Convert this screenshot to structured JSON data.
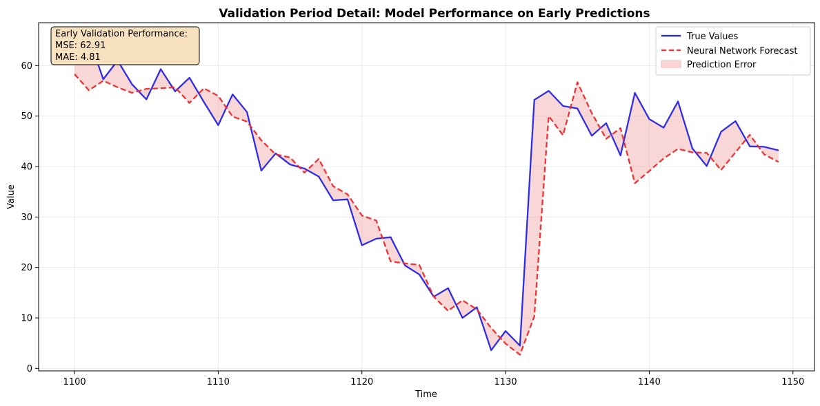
{
  "chart_data": {
    "type": "line",
    "title": "Validation Period Detail: Model Performance on Early Predictions",
    "xlabel": "Time",
    "ylabel": "Value",
    "xlim": [
      1097.5,
      1151.5
    ],
    "ylim": [
      -0.5,
      68.5
    ],
    "xticks": [
      1100,
      1110,
      1120,
      1130,
      1140,
      1150
    ],
    "yticks": [
      0,
      10,
      20,
      30,
      40,
      50,
      60
    ],
    "grid": true,
    "legend_position": "top-right",
    "x": [
      1100,
      1101,
      1102,
      1103,
      1104,
      1105,
      1106,
      1107,
      1108,
      1109,
      1110,
      1111,
      1112,
      1113,
      1114,
      1115,
      1116,
      1117,
      1118,
      1119,
      1120,
      1121,
      1122,
      1123,
      1124,
      1125,
      1126,
      1127,
      1128,
      1129,
      1130,
      1131,
      1132,
      1133,
      1134,
      1135,
      1136,
      1137,
      1138,
      1139,
      1140,
      1141,
      1142,
      1143,
      1144,
      1145,
      1146,
      1147,
      1148,
      1149
    ],
    "series": [
      {
        "name": "True Values",
        "color": "#2323e6",
        "style": "solid",
        "values": [
          61.0,
          65.5,
          57.3,
          61.0,
          56.3,
          53.3,
          59.3,
          54.9,
          57.6,
          52.8,
          48.2,
          54.3,
          50.8,
          39.2,
          42.6,
          40.4,
          39.6,
          38.0,
          33.3,
          33.5,
          24.4,
          25.7,
          26.0,
          20.4,
          18.6,
          14.2,
          15.9,
          10.0,
          12.1,
          3.6,
          7.4,
          4.5,
          53.2,
          55.0,
          52.0,
          51.5,
          46.1,
          48.6,
          42.2,
          54.6,
          49.4,
          47.7,
          52.9,
          43.6,
          40.1,
          46.9,
          49.0,
          44.0,
          43.9,
          43.2
        ]
      },
      {
        "name": "Neural Network Forecast",
        "color": "#ee2a2a",
        "style": "dashed",
        "values": [
          58.3,
          55.1,
          57.0,
          55.7,
          54.6,
          55.4,
          55.5,
          55.7,
          52.6,
          55.5,
          54.0,
          49.9,
          48.9,
          45.2,
          42.4,
          41.8,
          38.8,
          41.5,
          36.1,
          34.5,
          30.3,
          29.3,
          21.2,
          20.8,
          20.5,
          14.2,
          11.4,
          13.5,
          11.7,
          8.0,
          4.9,
          2.7,
          10.3,
          50.0,
          46.2,
          56.7,
          50.6,
          45.5,
          47.6,
          36.7,
          39.1,
          41.6,
          43.5,
          42.8,
          42.7,
          39.3,
          42.8,
          46.3,
          42.4,
          40.9
        ]
      }
    ],
    "fill": {
      "name": "Prediction Error",
      "color": "#f4a6a6",
      "opacity": 0.45,
      "between": [
        "True Values",
        "Neural Network Forecast"
      ]
    },
    "annotation": {
      "lines": [
        "Early Validation Performance:",
        "MSE: 62.91",
        "MAE: 4.81"
      ],
      "box_color": "#f7e1bf",
      "position": "top-left"
    }
  }
}
